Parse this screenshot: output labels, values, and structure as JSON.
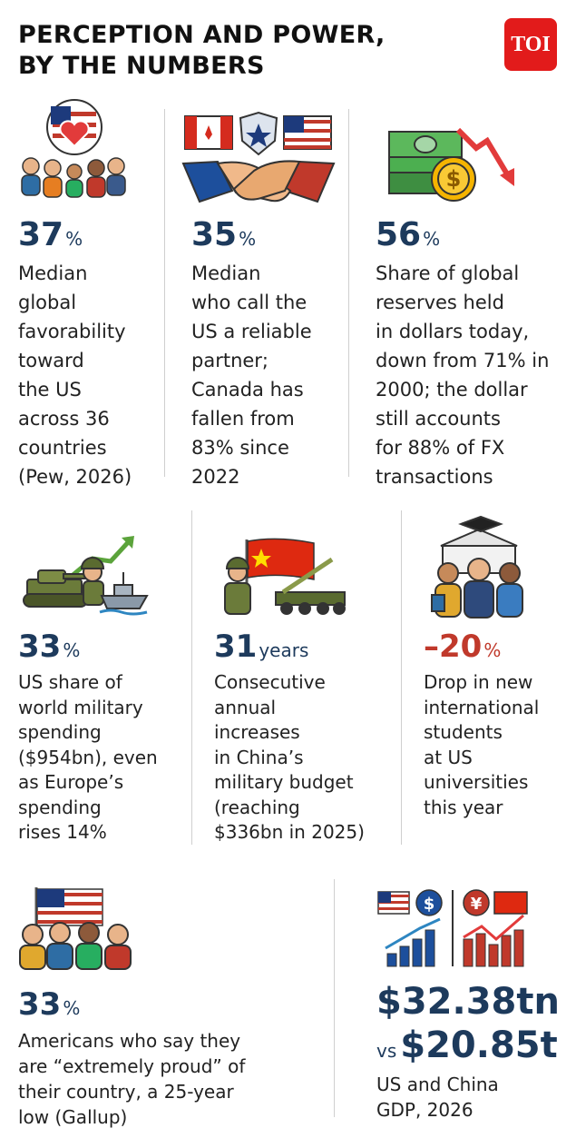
{
  "title": [
    "PERCEPTION AND POWER,",
    "BY THE NUMBERS"
  ],
  "logo": "TOI",
  "stats": [
    {
      "value": "37",
      "unit": "%",
      "lines": [
        "Median",
        "global",
        "favorability",
        "toward",
        "the US",
        "across 36",
        "countries",
        "(Pew, 2026)"
      ]
    },
    {
      "value": "35",
      "unit": "%",
      "lines": [
        "Median",
        "who call the",
        "US a reliable",
        "partner;",
        "Canada has",
        "fallen from",
        "83% since",
        "2022"
      ]
    },
    {
      "value": "56",
      "unit": "%",
      "lines": [
        "Share of global",
        "reserves held",
        "in dollars today,",
        "down from 71% in",
        "2000; the dollar",
        "still accounts",
        "for 88% of FX",
        "transactions"
      ]
    },
    {
      "value": "33",
      "unit": "%",
      "lines": [
        "US share of",
        "world military",
        "spending",
        "($954bn), even",
        "as Europe’s",
        "spending",
        "rises 14%"
      ]
    },
    {
      "value": "31",
      "unit": "years",
      "lines": [
        "Consecutive",
        "annual",
        "increases",
        "in China’s",
        "military budget",
        "(reaching",
        "$336bn in 2025)"
      ]
    },
    {
      "value": "–20",
      "unit": "%",
      "lines": [
        "Drop in new",
        "international",
        "students",
        "at US",
        "universities",
        "this year"
      ]
    },
    {
      "value": "33",
      "unit": "%",
      "lines": [
        "Americans who say they",
        "are “extremely proud” of",
        "their country, a 25-year",
        "low (Gallup)"
      ]
    }
  ],
  "gdp": {
    "us": "$32.38tn",
    "vs": "vs",
    "china": "$20.85t",
    "lines": [
      "US and China",
      "GDP, 2026"
    ]
  }
}
